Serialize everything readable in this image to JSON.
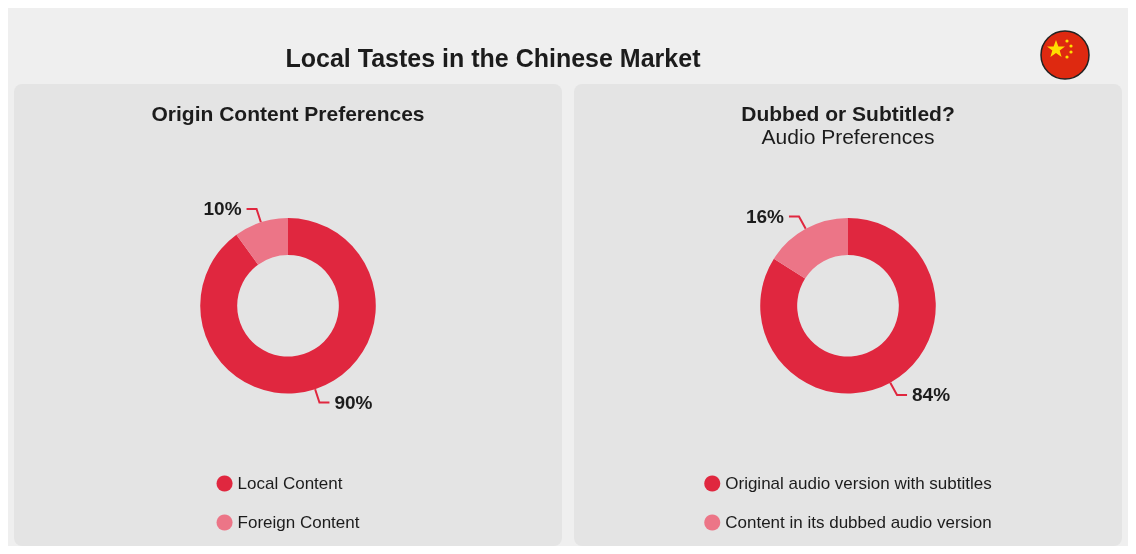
{
  "chart_data": [
    {
      "type": "other",
      "title": "Local Tastes in the Chinese Market"
    },
    {
      "type": "donut",
      "title": "Origin Content Preferences",
      "categories": [
        "Local Content",
        "Foreign Content"
      ],
      "values": [
        90,
        10
      ],
      "colors": [
        "#e0273f",
        "#ec7587"
      ],
      "value_labels": [
        "90%",
        "10%"
      ],
      "legend": "bottom"
    },
    {
      "type": "donut",
      "title": "Dubbed or Subtitled?",
      "subtitle": "Audio Preferences",
      "categories": [
        "Original audio version with subtitles",
        "Content in its dubbed audio version"
      ],
      "values": [
        84,
        16
      ],
      "colors": [
        "#e0273f",
        "#ec7587"
      ],
      "value_labels": [
        "84%",
        "16%"
      ],
      "legend": "bottom"
    }
  ]
}
